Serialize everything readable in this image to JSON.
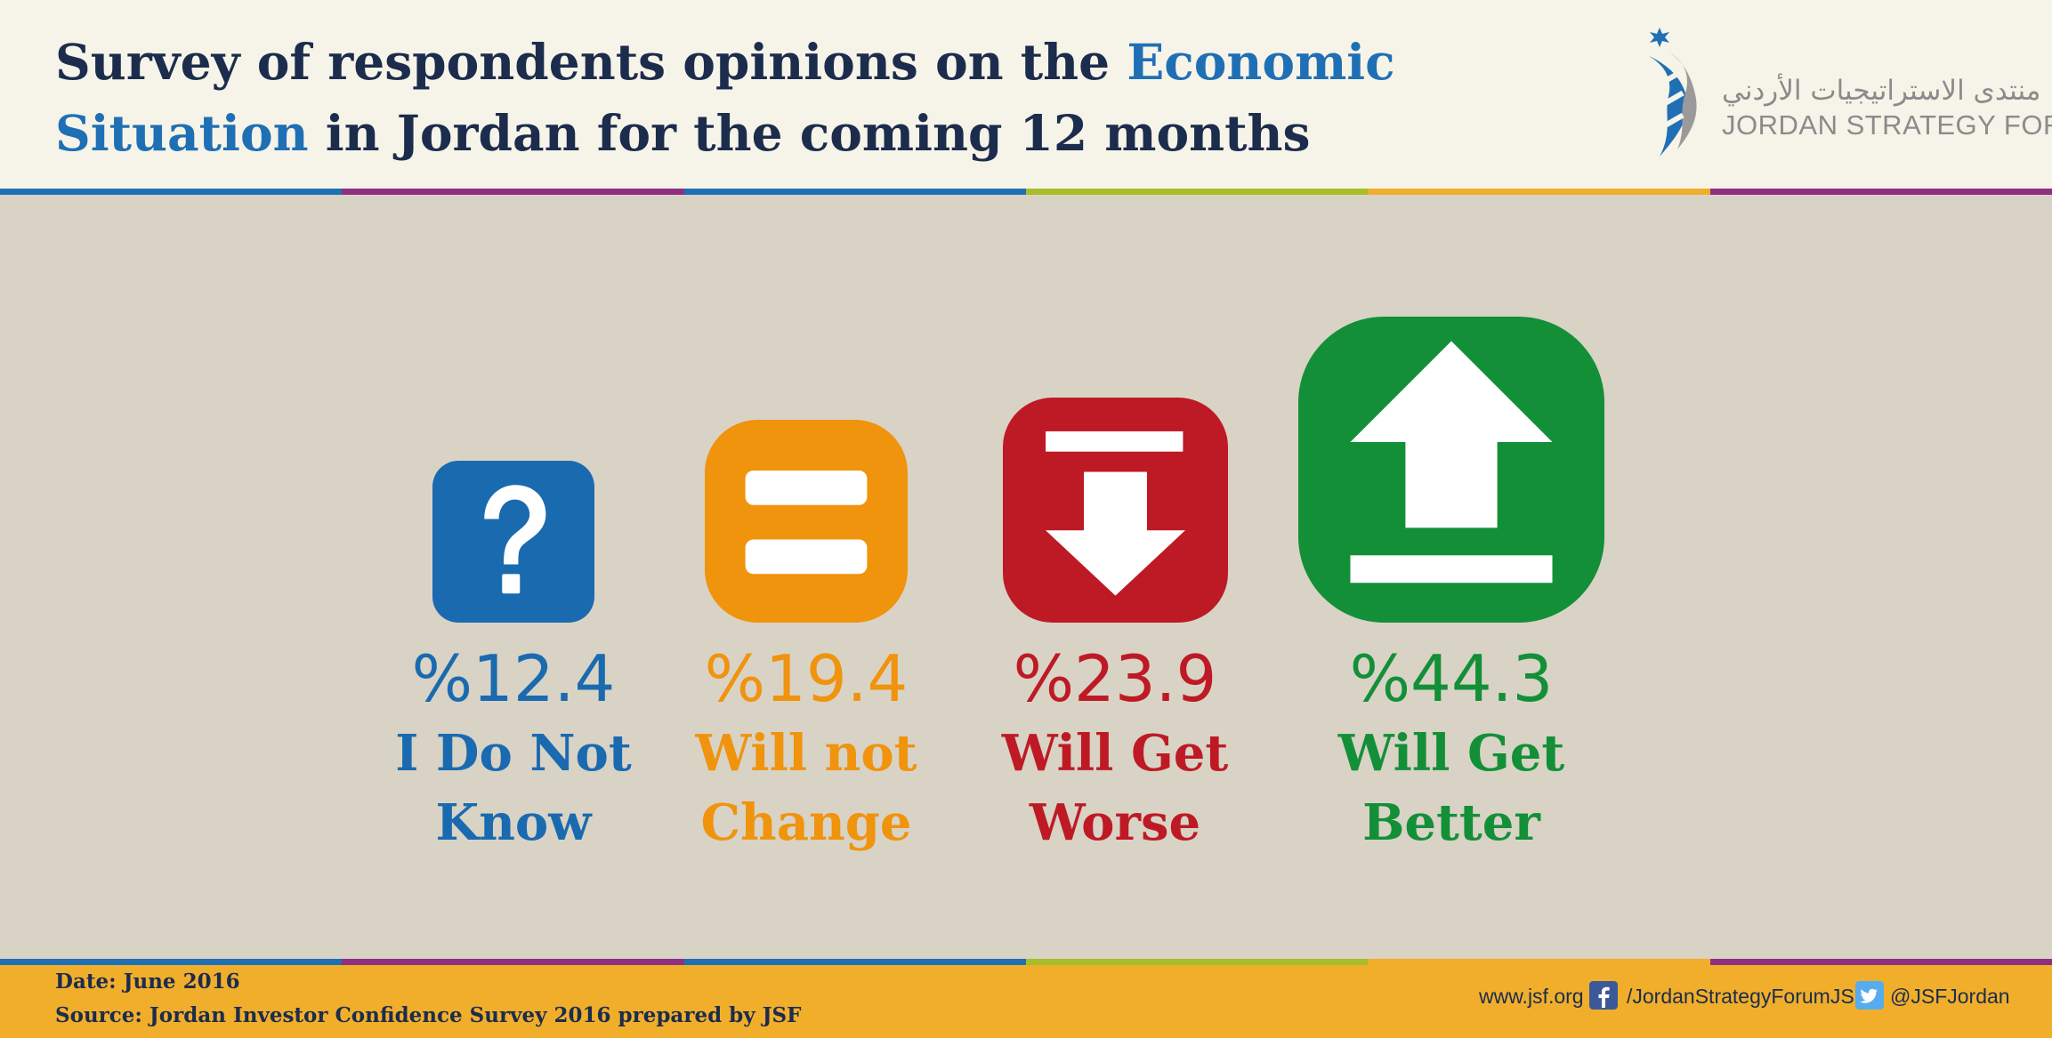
{
  "header": {
    "title_part1": "Survey of respondents opinions on the ",
    "title_hl1": "Economic",
    "title_hl2": "Situation",
    "title_part2": " in Jordan for the coming 12 months"
  },
  "logo": {
    "arabic": "منتدى الاستراتيجيات الأردني",
    "english": "JORDAN STRATEGY FORUM"
  },
  "chart_data": {
    "type": "bar",
    "unit": "%",
    "categories": [
      "I Do Not Know",
      "Will not Change",
      "Will Get Worse",
      "Will Get Better"
    ],
    "values": [
      12.4,
      19.4,
      23.9,
      44.3
    ],
    "value_labels": [
      "%12.4",
      "%19.4",
      "%23.9",
      "%44.3"
    ],
    "label_lines": [
      [
        "I Do Not",
        "Know"
      ],
      [
        "Will not",
        "Change"
      ],
      [
        "Will Get",
        "Worse"
      ],
      [
        "Will Get",
        "Better"
      ]
    ],
    "icons": [
      "question-icon",
      "equals-icon",
      "arrow-down-icon",
      "arrow-up-icon"
    ],
    "colors": [
      "#1a6ab0",
      "#f0930d",
      "#be1a25",
      "#138f38"
    ],
    "encoding": "icon size"
  },
  "footer": {
    "date": "Date: June 2016",
    "source": "Source: Jordan Investor Confidence Survey 2016 prepared by JSF",
    "website": "www.jsf.org",
    "facebook": "/JordanStrategyForumJSF",
    "twitter": "@JSFJordan"
  },
  "colors": {
    "navy": "#1c2c4d",
    "blue": "#1f6fb5",
    "header_bg": "#f6f4e8",
    "panel_bg": "#d8d3c5",
    "footer_bg": "#f0ae2b",
    "stripe": [
      "#1f6fb5",
      "#8e2f82",
      "#1f6fb5",
      "#a7bd2a",
      "#f0ae2b",
      "#8e2f82"
    ]
  }
}
